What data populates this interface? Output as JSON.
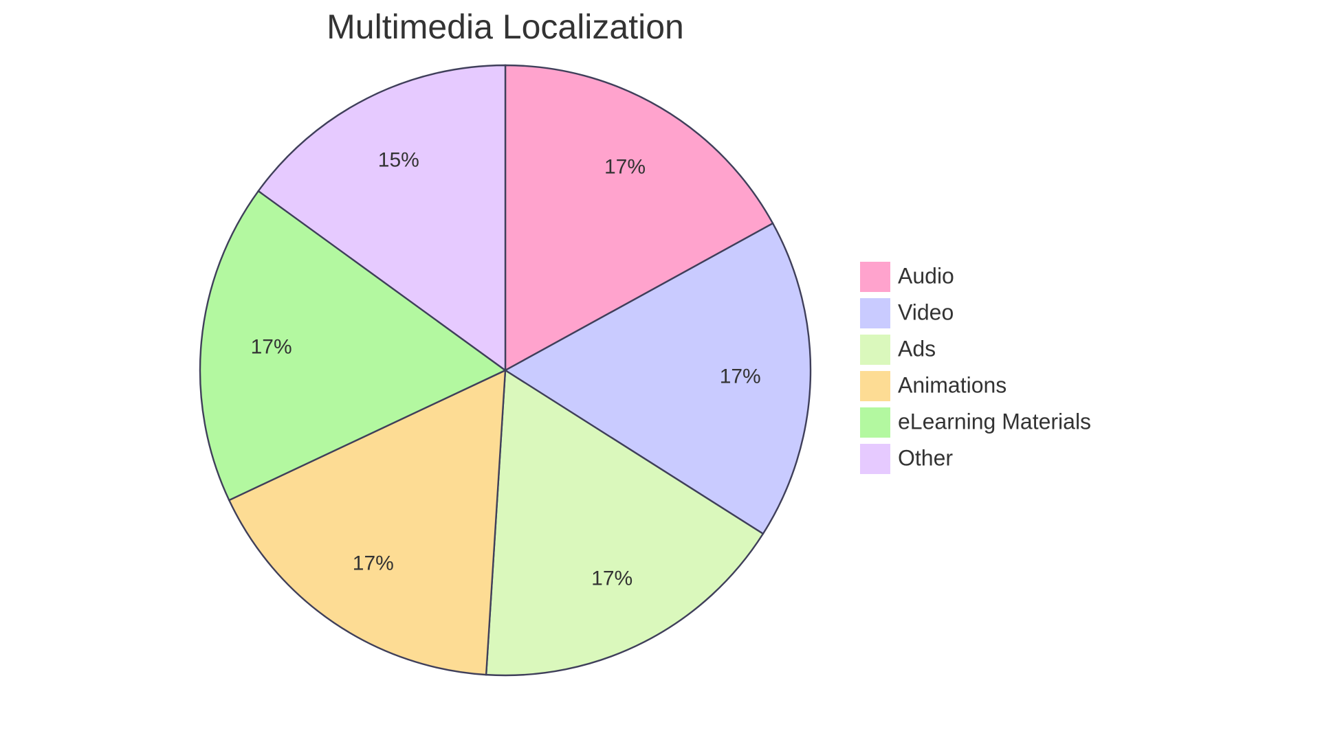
{
  "chart_data": {
    "type": "pie",
    "title": "Multimedia Localization",
    "categories": [
      "Audio",
      "Video",
      "Ads",
      "Animations",
      "eLearning Materials",
      "Other"
    ],
    "values": [
      17,
      17,
      17,
      17,
      17,
      15
    ],
    "value_labels": [
      "17%",
      "17%",
      "17%",
      "17%",
      "17%",
      "15%"
    ],
    "colors": [
      "#ffa3cd",
      "#c9cbff",
      "#daf8bc",
      "#fddc94",
      "#b3f8a0",
      "#e6caff"
    ],
    "legend": "right"
  }
}
